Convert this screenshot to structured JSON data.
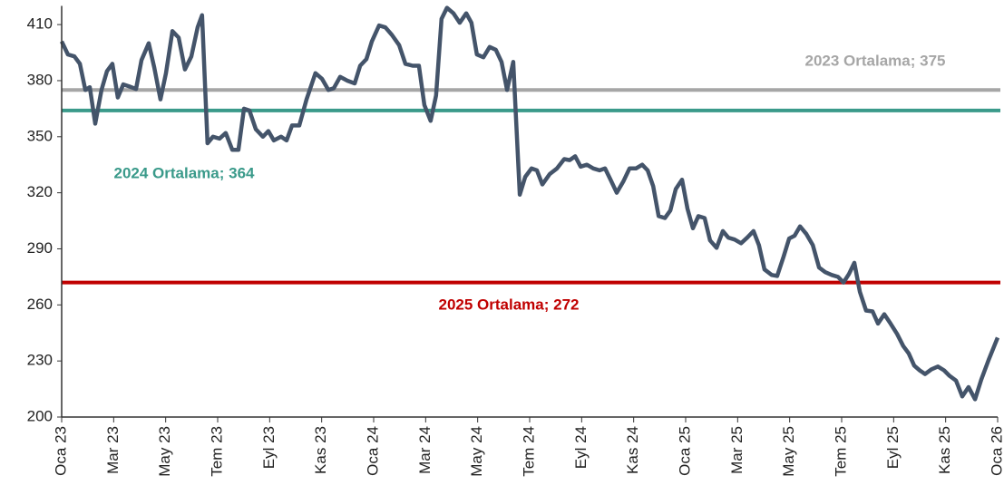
{
  "chart_data": {
    "type": "line",
    "color": "#44546a",
    "xlim": [
      0,
      36
    ],
    "xticks": [
      {
        "value": 0,
        "label": "Oca 23"
      },
      {
        "value": 2,
        "label": "Mar 23"
      },
      {
        "value": 4,
        "label": "May 23"
      },
      {
        "value": 6,
        "label": "Tem 23"
      },
      {
        "value": 8,
        "label": "Eyl 23"
      },
      {
        "value": 10,
        "label": "Kas 23"
      },
      {
        "value": 12,
        "label": "Oca 24"
      },
      {
        "value": 14,
        "label": "Mar 24"
      },
      {
        "value": 16,
        "label": "May 24"
      },
      {
        "value": 18,
        "label": "Tem 24"
      },
      {
        "value": 20,
        "label": "Eyl 24"
      },
      {
        "value": 22,
        "label": "Kas 24"
      },
      {
        "value": 24,
        "label": "Oca 25"
      },
      {
        "value": 26,
        "label": "Mar 25"
      },
      {
        "value": 28,
        "label": "May 25"
      },
      {
        "value": 30,
        "label": "Tem 25"
      },
      {
        "value": 32,
        "label": "Eyl 25"
      },
      {
        "value": 34,
        "label": "Kas 25"
      },
      {
        "value": 36,
        "label": "Oca 26"
      }
    ],
    "ylim": [
      200,
      420
    ],
    "yticks": [
      200,
      230,
      260,
      290,
      320,
      350,
      380,
      410
    ],
    "x": [
      0,
      0.24,
      0.49,
      0.7,
      0.91,
      1.08,
      1.29,
      1.53,
      1.74,
      1.95,
      2.16,
      2.37,
      2.58,
      2.86,
      3.07,
      3.35,
      3.56,
      3.8,
      4.01,
      4.26,
      4.5,
      4.74,
      4.99,
      5.23,
      5.4,
      5.61,
      5.82,
      6.07,
      6.31,
      6.56,
      6.8,
      7.01,
      7.22,
      7.47,
      7.74,
      7.95,
      8.16,
      8.44,
      8.65,
      8.86,
      9.14,
      9.42,
      9.76,
      10.01,
      10.26,
      10.47,
      10.71,
      10.99,
      11.27,
      11.48,
      11.72,
      11.93,
      12.21,
      12.45,
      12.7,
      12.98,
      13.22,
      13.5,
      13.74,
      13.95,
      14.19,
      14.4,
      14.61,
      14.82,
      15.07,
      15.31,
      15.56,
      15.76,
      15.97,
      16.22,
      16.46,
      16.7,
      16.92,
      17.13,
      17.37,
      17.62,
      17.83,
      18.07,
      18.28,
      18.49,
      18.77,
      19.05,
      19.33,
      19.54,
      19.75,
      19.96,
      20.2,
      20.45,
      20.69,
      20.9,
      21.11,
      21.35,
      21.6,
      21.84,
      22.09,
      22.33,
      22.54,
      22.75,
      22.96,
      23.2,
      23.41,
      23.62,
      23.86,
      24.07,
      24.28,
      24.49,
      24.73,
      24.94,
      25.19,
      25.43,
      25.64,
      25.88,
      26.13,
      26.37,
      26.61,
      26.82,
      27.03,
      27.31,
      27.52,
      27.77,
      27.98,
      28.19,
      28.4,
      28.64,
      28.89,
      29.13,
      29.37,
      29.62,
      29.86,
      30.07,
      30.28,
      30.49,
      30.7,
      30.94,
      31.19,
      31.4,
      31.64,
      31.88,
      32.13,
      32.37,
      32.58,
      32.79,
      33,
      33.21,
      33.45,
      33.7,
      33.94,
      34.15,
      34.4,
      34.64,
      34.88,
      35.13,
      35.37,
      35.65,
      36
    ],
    "values": [
      401,
      394,
      393,
      389,
      375,
      376.5,
      357,
      375,
      385,
      389,
      371,
      378,
      377,
      375.5,
      391,
      400,
      387,
      370,
      384,
      406.5,
      403,
      386,
      393,
      408.5,
      415,
      346.5,
      350,
      349,
      352,
      343,
      343,
      365,
      364,
      354,
      350,
      353,
      348,
      350,
      348,
      356,
      356,
      370,
      384,
      381,
      375,
      376,
      382,
      380,
      378.5,
      388,
      391.5,
      401,
      409.5,
      408.5,
      404.5,
      399,
      389,
      388,
      388,
      367,
      358.5,
      372,
      413,
      419,
      416,
      411,
      416,
      411,
      394,
      392.5,
      398,
      396.5,
      390,
      375,
      390,
      319,
      328.5,
      333,
      332,
      324.5,
      330,
      333,
      338,
      337.5,
      339.5,
      334,
      335,
      333,
      332,
      333,
      327,
      320,
      326,
      333,
      333,
      335,
      332,
      323.5,
      307.5,
      306.5,
      310.5,
      322,
      327,
      311.5,
      301,
      307.5,
      306.5,
      294.5,
      290.5,
      299.5,
      296,
      295,
      293,
      296,
      299.5,
      292,
      279,
      276,
      275.5,
      286,
      295.5,
      297,
      302,
      298,
      292,
      280,
      277.5,
      276,
      275,
      272,
      276.5,
      282.5,
      267,
      257,
      256.5,
      250,
      255,
      250,
      244.5,
      238,
      234,
      227.5,
      225,
      223,
      225.5,
      227,
      225,
      222,
      219.5,
      211,
      216,
      209.5,
      220,
      230.5,
      242.5
    ],
    "reference_lines": [
      {
        "label": "2023 Ortalama; 375",
        "value": 375,
        "color": "#a6a6a6"
      },
      {
        "label": "2024 Ortalama; 364",
        "value": 364,
        "color": "#3a9a8a"
      },
      {
        "label": "2025 Ortalama; 272",
        "value": 272,
        "color": "#c00000"
      }
    ]
  }
}
